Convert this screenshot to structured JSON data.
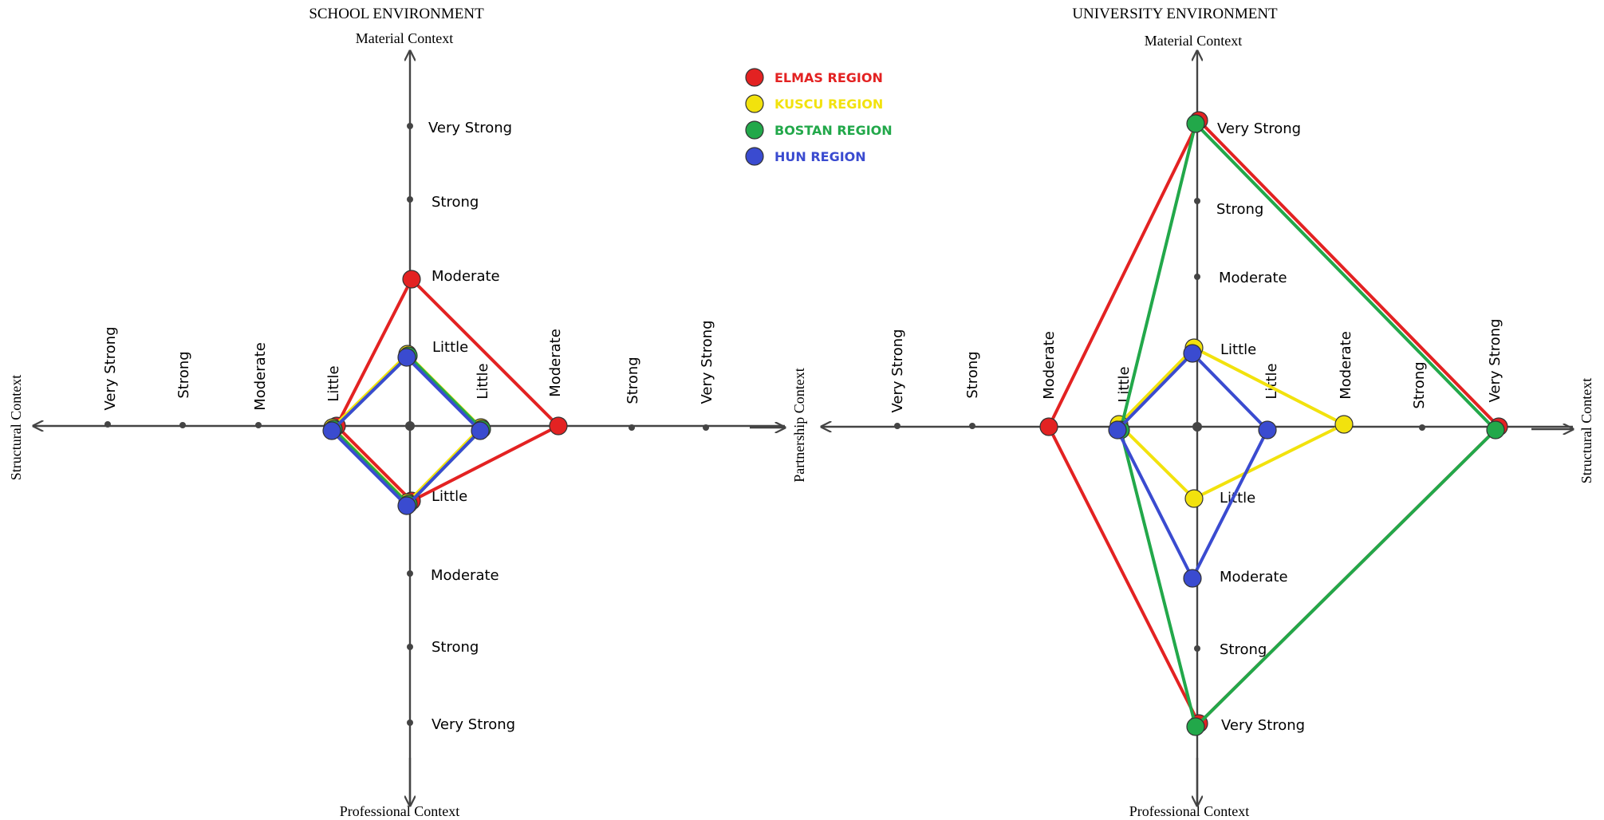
{
  "legend": [
    {
      "label": "ELMAS REGION",
      "color": "#e32222"
    },
    {
      "label": "KUSCU REGION",
      "color": "#f2e20d"
    },
    {
      "label": "BOSTAN REGION",
      "color": "#22a84a"
    },
    {
      "label": "HUN REGION",
      "color": "#3a4bd0"
    }
  ],
  "levels": [
    "Little",
    "Moderate",
    "Strong",
    "Very Strong"
  ],
  "chart_data": [
    {
      "type": "radar",
      "title": "SCHOOL ENVIRONMENT",
      "axes": {
        "top": "Material Context",
        "bottom": "Professional Context",
        "left": "Structural Context",
        "right": ""
      },
      "scale": [
        "Little",
        "Moderate",
        "Strong",
        "Very Strong"
      ],
      "series": [
        {
          "name": "ELMAS REGION",
          "color": "#e32222",
          "top": 2,
          "right": 2,
          "bottom": 1,
          "left": 1
        },
        {
          "name": "KUSCU REGION",
          "color": "#f2e20d",
          "top": 1,
          "right": 1,
          "bottom": 1,
          "left": 1
        },
        {
          "name": "BOSTAN REGION",
          "color": "#22a84a",
          "top": 1,
          "right": 1,
          "bottom": 1,
          "left": 1
        },
        {
          "name": "HUN REGION",
          "color": "#3a4bd0",
          "top": 1,
          "right": 1,
          "bottom": 1,
          "left": 1
        }
      ]
    },
    {
      "type": "radar",
      "title": "UNIVERSITY ENVIRONMENT",
      "axes": {
        "top": "Material Context",
        "bottom": "Professional Context",
        "left": "Partnership Context",
        "right": "Structural Context"
      },
      "scale": [
        "Little",
        "Moderate",
        "Strong",
        "Very Strong"
      ],
      "series": [
        {
          "name": "ELMAS REGION",
          "color": "#e32222",
          "top": 4,
          "right": 4,
          "bottom": 4,
          "left": 2
        },
        {
          "name": "KUSCU REGION",
          "color": "#f2e20d",
          "top": 1,
          "right": 2,
          "bottom": 1,
          "left": 1
        },
        {
          "name": "BOSTAN REGION",
          "color": "#22a84a",
          "top": 4,
          "right": 4,
          "bottom": 4,
          "left": 1
        },
        {
          "name": "HUN REGION",
          "color": "#3a4bd0",
          "top": 1,
          "right": 1,
          "bottom": 2,
          "left": 1
        }
      ]
    }
  ]
}
